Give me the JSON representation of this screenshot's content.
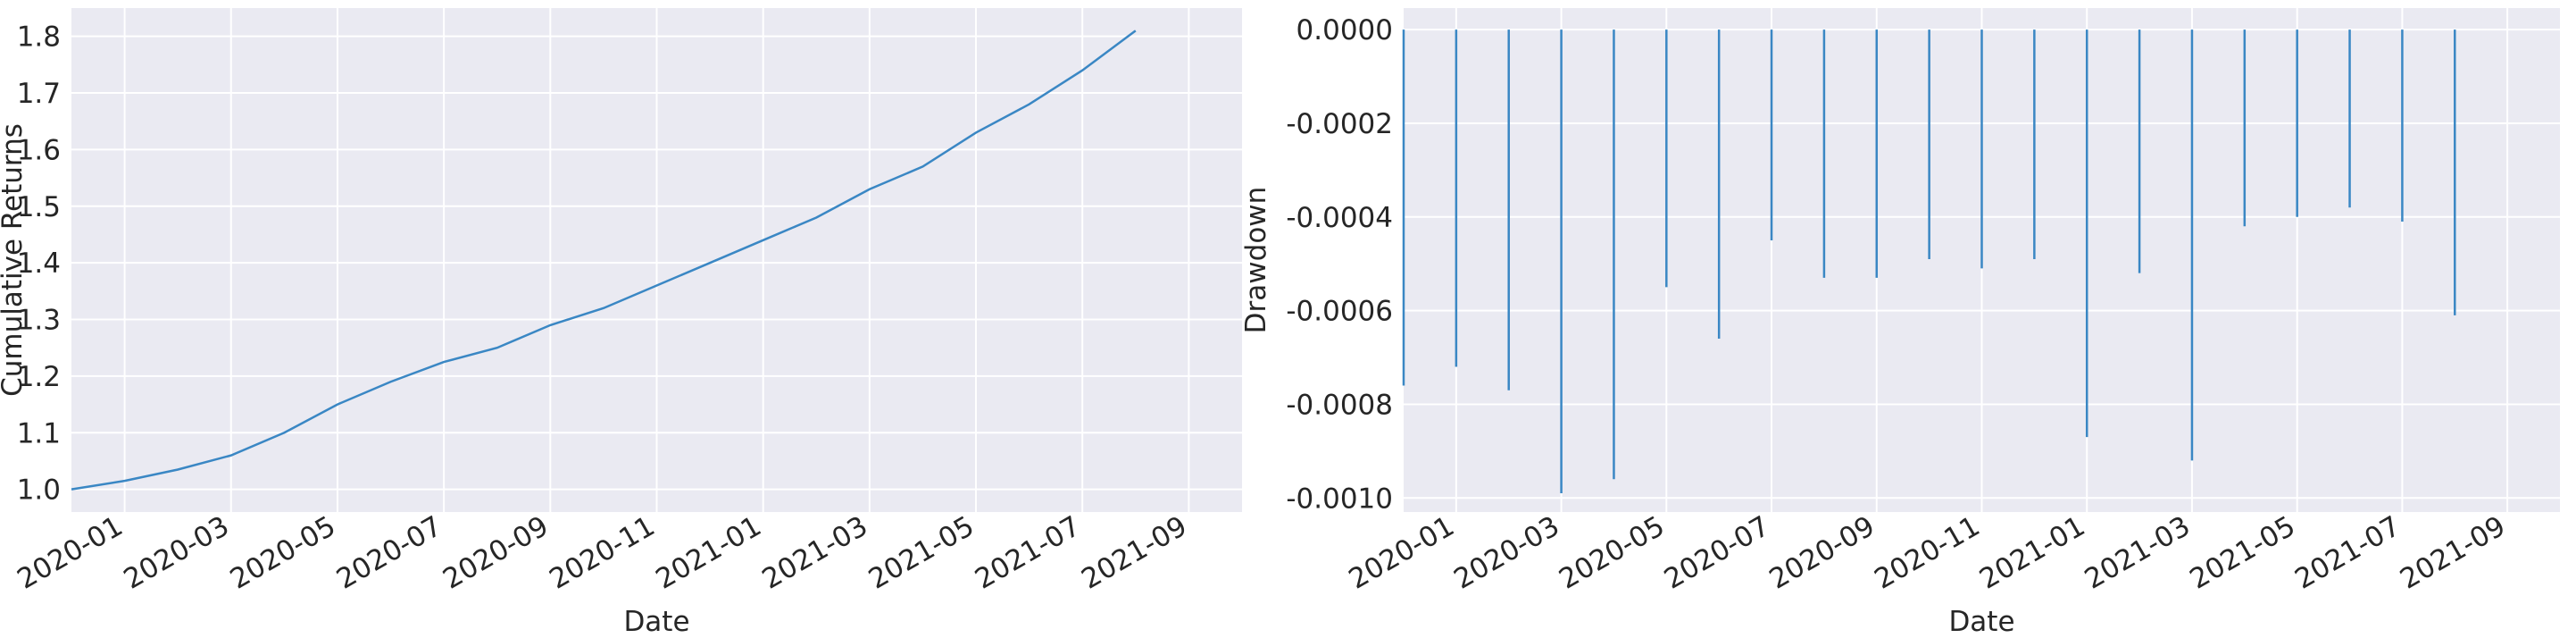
{
  "chart_data": [
    {
      "type": "line",
      "xlabel": "Date",
      "ylabel": "Cumulative Returns",
      "color": "#3a87c4",
      "grid": true,
      "x": [
        "2019-12",
        "2020-01",
        "2020-02",
        "2020-03",
        "2020-04",
        "2020-05",
        "2020-06",
        "2020-07",
        "2020-08",
        "2020-09",
        "2020-10",
        "2020-11",
        "2020-12",
        "2021-01",
        "2021-02",
        "2021-03",
        "2021-04",
        "2021-05",
        "2021-06",
        "2021-07",
        "2021-08"
      ],
      "values": [
        1.0,
        1.015,
        1.035,
        1.06,
        1.1,
        1.15,
        1.19,
        1.225,
        1.25,
        1.29,
        1.32,
        1.36,
        1.4,
        1.44,
        1.48,
        1.53,
        1.57,
        1.63,
        1.68,
        1.74,
        1.81
      ],
      "xlim": [
        "2019-12",
        "2021-10"
      ],
      "xticks": [
        "2020-01",
        "2020-03",
        "2020-05",
        "2020-07",
        "2020-09",
        "2020-11",
        "2021-01",
        "2021-03",
        "2021-05",
        "2021-07",
        "2021-09"
      ],
      "ylim": [
        0.96,
        1.85
      ],
      "yticks": [
        {
          "value": 1,
          "label": "1.0"
        },
        1.1,
        1.2,
        1.3,
        1.4,
        1.5,
        1.6,
        1.7,
        1.8
      ]
    },
    {
      "type": "stem",
      "xlabel": "Date",
      "ylabel": "Drawdown",
      "color": "#3a87c4",
      "grid": true,
      "x": [
        "2019-12",
        "2020-01",
        "2020-02",
        "2020-03",
        "2020-04",
        "2020-05",
        "2020-06",
        "2020-07",
        "2020-08",
        "2020-09",
        "2020-10",
        "2020-11",
        "2020-12",
        "2021-01",
        "2021-02",
        "2021-03",
        "2021-04",
        "2021-05",
        "2021-06",
        "2021-07",
        "2021-08"
      ],
      "values": [
        -0.00076,
        -0.00072,
        -0.00077,
        -0.00099,
        -0.00096,
        -0.00055,
        -0.00066,
        -0.00045,
        -0.00053,
        -0.00053,
        -0.00049,
        -0.00051,
        -0.00049,
        -0.00087,
        -0.00052,
        -0.00092,
        -0.00042,
        -0.0004,
        -0.00038,
        -0.00041,
        -0.00061
      ],
      "xlim": [
        "2019-12",
        "2021-10"
      ],
      "xticks": [
        "2020-01",
        "2020-03",
        "2020-05",
        "2020-07",
        "2020-09",
        "2020-11",
        "2021-01",
        "2021-03",
        "2021-05",
        "2021-07",
        "2021-09"
      ],
      "ylim": [
        -0.00103,
        4.6e-05
      ],
      "yticks": [
        {
          "value": -0.001,
          "label": "-0.0010"
        },
        {
          "value": -0.0008,
          "label": "-0.0008"
        },
        {
          "value": -0.0006,
          "label": "-0.0006"
        },
        {
          "value": -0.0004,
          "label": "-0.0004"
        },
        {
          "value": -0.0002,
          "label": "-0.0002"
        },
        {
          "value": 0,
          "label": "0.0000"
        }
      ]
    }
  ]
}
